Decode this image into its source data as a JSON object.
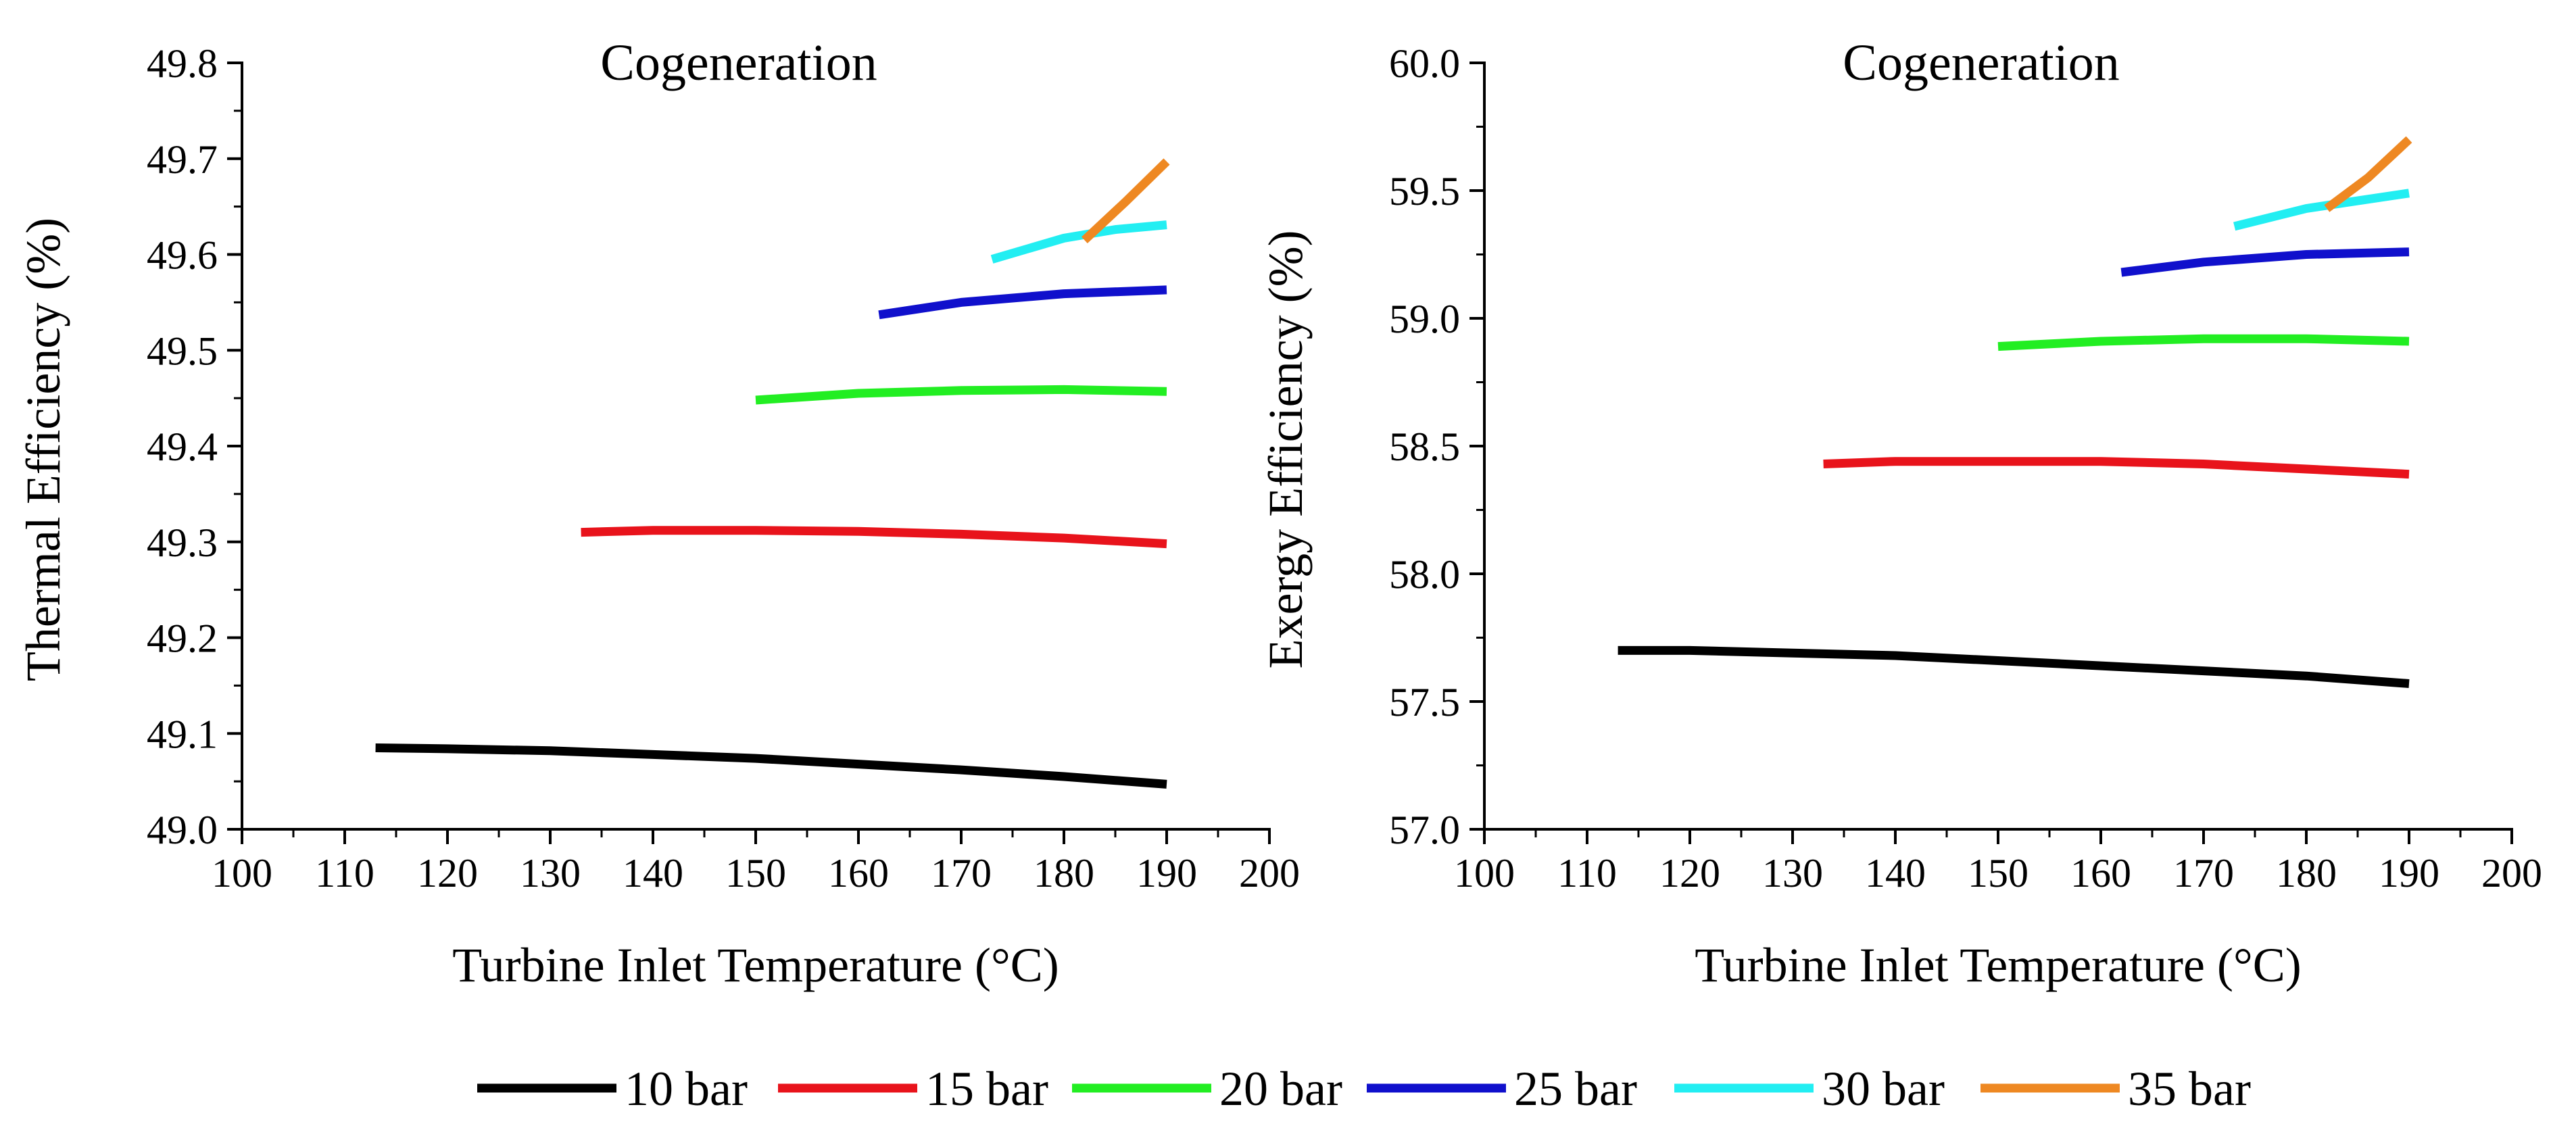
{
  "chart_data": [
    {
      "type": "line",
      "title": "Cogeneration",
      "xlabel": "Turbine Inlet Temperature (°C)",
      "ylabel": "Thermal Efficiency (%)",
      "xlim": [
        100,
        200
      ],
      "ylim": [
        49.0,
        49.8
      ],
      "xticks": [
        "100",
        "110",
        "120",
        "130",
        "140",
        "150",
        "160",
        "170",
        "180",
        "190",
        "200"
      ],
      "yticks": [
        "49.0",
        "49.1",
        "49.2",
        "49.3",
        "49.4",
        "49.5",
        "49.6",
        "49.7",
        "49.8"
      ],
      "grid": false,
      "series": [
        {
          "name": "10 bar",
          "x": [
            113,
            120,
            130,
            140,
            150,
            160,
            170,
            180,
            190
          ],
          "y": [
            49.085,
            49.084,
            49.082,
            49.078,
            49.074,
            49.068,
            49.062,
            49.055,
            49.047
          ]
        },
        {
          "name": "15 bar",
          "x": [
            133,
            140,
            150,
            160,
            170,
            180,
            190
          ],
          "y": [
            49.31,
            49.312,
            49.312,
            49.311,
            49.308,
            49.304,
            49.298
          ]
        },
        {
          "name": "20 bar",
          "x": [
            150,
            160,
            170,
            180,
            190
          ],
          "y": [
            49.448,
            49.455,
            49.458,
            49.459,
            49.457
          ]
        },
        {
          "name": "25 bar",
          "x": [
            162,
            170,
            180,
            190
          ],
          "y": [
            49.537,
            49.55,
            49.559,
            49.563
          ]
        },
        {
          "name": "30 bar",
          "x": [
            173,
            180,
            185,
            190
          ],
          "y": [
            49.595,
            49.617,
            49.626,
            49.631
          ]
        },
        {
          "name": "35 bar",
          "x": [
            182,
            186,
            190
          ],
          "y": [
            49.615,
            49.655,
            49.697
          ]
        }
      ]
    },
    {
      "type": "line",
      "title": "Cogeneration",
      "xlabel": "Turbine Inlet Temperature (°C)",
      "ylabel": "Exergy Efficiency (%)",
      "xlim": [
        100,
        200
      ],
      "ylim": [
        57.0,
        60.0
      ],
      "xticks": [
        "100",
        "110",
        "120",
        "130",
        "140",
        "150",
        "160",
        "170",
        "180",
        "190",
        "200"
      ],
      "yticks": [
        "57.0",
        "57.5",
        "58.0",
        "58.5",
        "59.0",
        "59.5",
        "60.0"
      ],
      "grid": false,
      "series": [
        {
          "name": "10 bar",
          "x": [
            113,
            120,
            130,
            140,
            150,
            160,
            170,
            180,
            190
          ],
          "y": [
            57.7,
            57.7,
            57.69,
            57.68,
            57.66,
            57.64,
            57.62,
            57.6,
            57.57
          ]
        },
        {
          "name": "15 bar",
          "x": [
            133,
            140,
            150,
            160,
            170,
            180,
            190
          ],
          "y": [
            58.43,
            58.44,
            58.44,
            58.44,
            58.43,
            58.41,
            58.39
          ]
        },
        {
          "name": "20 bar",
          "x": [
            150,
            160,
            170,
            180,
            190
          ],
          "y": [
            58.89,
            58.91,
            58.92,
            58.92,
            58.91
          ]
        },
        {
          "name": "25 bar",
          "x": [
            162,
            170,
            180,
            190
          ],
          "y": [
            59.18,
            59.22,
            59.25,
            59.26
          ]
        },
        {
          "name": "30 bar",
          "x": [
            173,
            180,
            185,
            190
          ],
          "y": [
            59.36,
            59.43,
            59.46,
            59.49
          ]
        },
        {
          "name": "35 bar",
          "x": [
            182,
            186,
            190
          ],
          "y": [
            59.43,
            59.55,
            59.7
          ]
        }
      ]
    }
  ],
  "legend": {
    "entries": [
      {
        "label": "10 bar",
        "color": "#000000"
      },
      {
        "label": "15 bar",
        "color": "#e8131b"
      },
      {
        "label": "20 bar",
        "color": "#22ee22"
      },
      {
        "label": "25 bar",
        "color": "#1010cc"
      },
      {
        "label": "30 bar",
        "color": "#22eef2"
      },
      {
        "label": "35 bar",
        "color": "#ee8822"
      }
    ]
  }
}
